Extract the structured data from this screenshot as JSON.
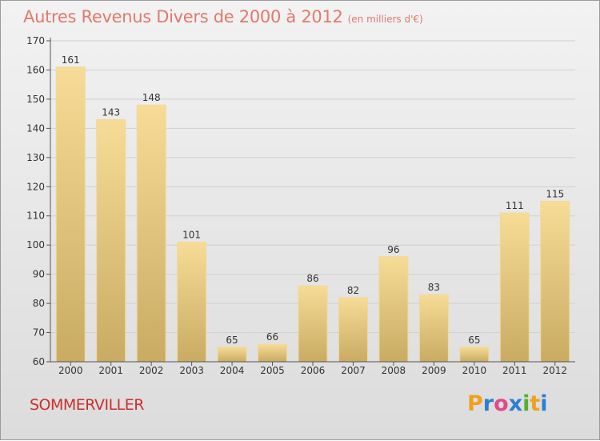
{
  "header": {
    "title": "Autres Revenus Divers de 2000 à 2012",
    "subtitle": "(en milliers d'€)"
  },
  "footer": {
    "commune": "SOMMERVILLER",
    "brand_letters": [
      "P",
      "r",
      "o",
      "x",
      "i",
      "t",
      "i"
    ],
    "brand_colors": [
      "#f0a020",
      "#2a7fd4",
      "#e04a8a",
      "#2a7fd4",
      "#55b030",
      "#f0a020",
      "#2a7fd4"
    ]
  },
  "chart_data": {
    "type": "bar",
    "categories": [
      "2000",
      "2001",
      "2002",
      "2003",
      "2004",
      "2005",
      "2006",
      "2007",
      "2008",
      "2009",
      "2010",
      "2011",
      "2012"
    ],
    "values": [
      161,
      143,
      148,
      101,
      65,
      66,
      86,
      82,
      96,
      83,
      65,
      111,
      115
    ],
    "title": "Autres Revenus Divers de 2000 à 2012",
    "subtitle": "(en milliers d'€)",
    "xlabel": "",
    "ylabel": "",
    "ylim": [
      60,
      170
    ],
    "yticks": [
      60,
      70,
      80,
      90,
      100,
      110,
      120,
      130,
      140,
      150,
      160,
      170
    ],
    "grid": true,
    "bar_color": "#e8c77d"
  }
}
